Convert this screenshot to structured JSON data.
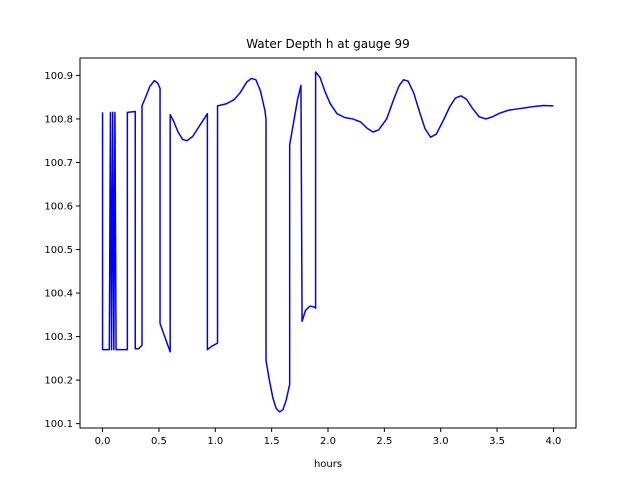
{
  "chart_data": {
    "type": "line",
    "title": "Water Depth h at gauge 99",
    "xlabel": "hours",
    "ylabel": "",
    "xlim": [
      -0.2,
      4.2
    ],
    "ylim": [
      100.09,
      100.94
    ],
    "xticks": [
      0.0,
      0.5,
      1.0,
      1.5,
      2.0,
      2.5,
      3.0,
      3.5,
      4.0
    ],
    "xtick_labels": [
      "0.0",
      "0.5",
      "1.0",
      "1.5",
      "2.0",
      "2.5",
      "3.0",
      "3.5",
      "4.0"
    ],
    "yticks": [
      100.1,
      100.2,
      100.3,
      100.4,
      100.5,
      100.6,
      100.7,
      100.8,
      100.9
    ],
    "ytick_labels": [
      "100.1",
      "100.2",
      "100.3",
      "100.4",
      "100.5",
      "100.6",
      "100.7",
      "100.8",
      "100.9"
    ],
    "grid": false,
    "legend": "none",
    "colors": {
      "series": "#0000ff",
      "axes": "#000000",
      "background": "#ffffff"
    },
    "series": [
      {
        "color": "#0000ff",
        "points": [
          [
            0.0,
            100.815
          ],
          [
            0.0,
            100.27
          ],
          [
            0.06,
            100.27
          ],
          [
            0.07,
            100.815
          ],
          [
            0.08,
            100.27
          ],
          [
            0.09,
            100.815
          ],
          [
            0.1,
            100.27
          ],
          [
            0.11,
            100.815
          ],
          [
            0.12,
            100.27
          ],
          [
            0.22,
            100.27
          ],
          [
            0.22,
            100.815
          ],
          [
            0.29,
            100.817
          ],
          [
            0.29,
            100.272
          ],
          [
            0.32,
            100.272
          ],
          [
            0.35,
            100.28
          ],
          [
            0.35,
            100.83
          ],
          [
            0.39,
            100.855
          ],
          [
            0.42,
            100.875
          ],
          [
            0.46,
            100.888
          ],
          [
            0.49,
            100.882
          ],
          [
            0.51,
            100.87
          ],
          [
            0.51,
            100.33
          ],
          [
            0.6,
            100.265
          ],
          [
            0.6,
            100.81
          ],
          [
            0.63,
            100.795
          ],
          [
            0.67,
            100.77
          ],
          [
            0.71,
            100.753
          ],
          [
            0.75,
            100.75
          ],
          [
            0.8,
            100.76
          ],
          [
            0.85,
            100.78
          ],
          [
            0.9,
            100.8
          ],
          [
            0.93,
            100.812
          ],
          [
            0.93,
            100.27
          ],
          [
            0.97,
            100.278
          ],
          [
            1.02,
            100.285
          ],
          [
            1.02,
            100.83
          ],
          [
            1.1,
            100.835
          ],
          [
            1.17,
            100.845
          ],
          [
            1.22,
            100.86
          ],
          [
            1.28,
            100.885
          ],
          [
            1.32,
            100.893
          ],
          [
            1.36,
            100.89
          ],
          [
            1.4,
            100.865
          ],
          [
            1.44,
            100.82
          ],
          [
            1.45,
            100.8
          ],
          [
            1.45,
            100.245
          ],
          [
            1.48,
            100.2
          ],
          [
            1.51,
            100.16
          ],
          [
            1.54,
            100.135
          ],
          [
            1.57,
            100.127
          ],
          [
            1.6,
            100.132
          ],
          [
            1.63,
            100.155
          ],
          [
            1.66,
            100.19
          ],
          [
            1.66,
            100.74
          ],
          [
            1.7,
            100.8
          ],
          [
            1.73,
            100.845
          ],
          [
            1.76,
            100.877
          ],
          [
            1.77,
            100.335
          ],
          [
            1.8,
            100.36
          ],
          [
            1.84,
            100.37
          ],
          [
            1.88,
            100.368
          ],
          [
            1.89,
            100.365
          ],
          [
            1.89,
            100.908
          ],
          [
            1.93,
            100.895
          ],
          [
            1.97,
            100.865
          ],
          [
            2.02,
            100.835
          ],
          [
            2.08,
            100.812
          ],
          [
            2.15,
            100.803
          ],
          [
            2.22,
            100.8
          ],
          [
            2.29,
            100.793
          ],
          [
            2.35,
            100.778
          ],
          [
            2.4,
            100.77
          ],
          [
            2.45,
            100.775
          ],
          [
            2.52,
            100.8
          ],
          [
            2.58,
            100.843
          ],
          [
            2.63,
            100.876
          ],
          [
            2.67,
            100.89
          ],
          [
            2.71,
            100.887
          ],
          [
            2.76,
            100.86
          ],
          [
            2.81,
            100.818
          ],
          [
            2.86,
            100.778
          ],
          [
            2.91,
            100.758
          ],
          [
            2.96,
            100.765
          ],
          [
            3.02,
            100.795
          ],
          [
            3.08,
            100.828
          ],
          [
            3.13,
            100.848
          ],
          [
            3.18,
            100.853
          ],
          [
            3.23,
            100.845
          ],
          [
            3.28,
            100.825
          ],
          [
            3.34,
            100.805
          ],
          [
            3.4,
            100.8
          ],
          [
            3.46,
            100.805
          ],
          [
            3.52,
            100.813
          ],
          [
            3.6,
            100.82
          ],
          [
            3.68,
            100.823
          ],
          [
            3.76,
            100.826
          ],
          [
            3.84,
            100.829
          ],
          [
            3.91,
            100.831
          ],
          [
            4.0,
            100.83
          ]
        ]
      }
    ]
  }
}
